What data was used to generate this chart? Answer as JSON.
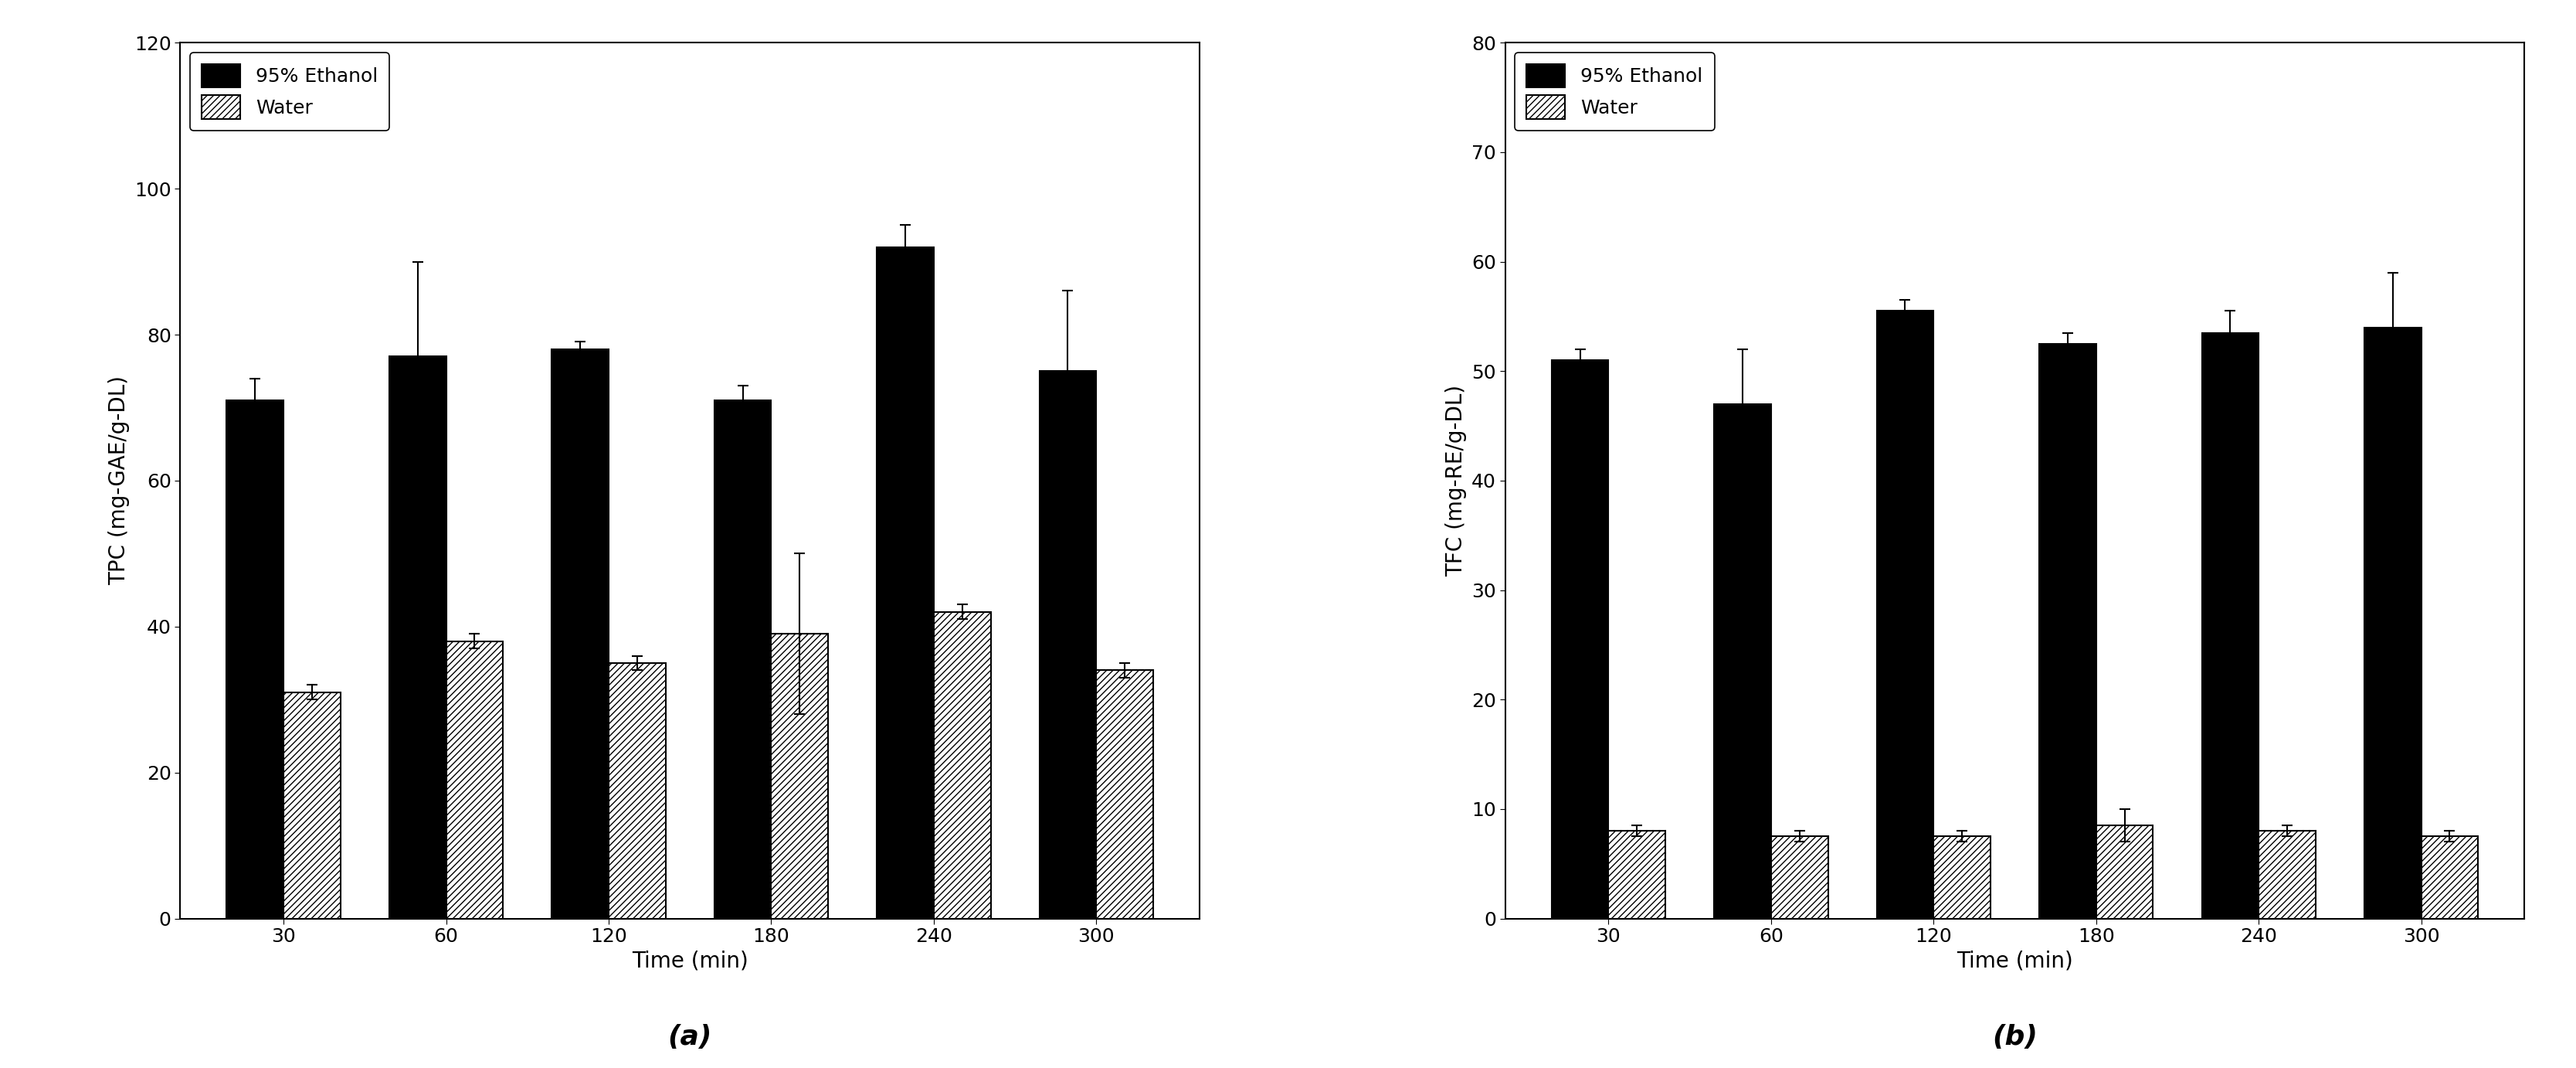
{
  "time_labels": [
    30,
    60,
    120,
    180,
    240,
    300
  ],
  "chart_a": {
    "title": "(a)",
    "ylabel": "TPC (mg-GAE/g-DL)",
    "xlabel": "Time (min)",
    "ylim": [
      0,
      120
    ],
    "yticks": [
      0,
      20,
      40,
      60,
      80,
      100,
      120
    ],
    "ethanol_values": [
      71,
      77,
      78,
      71,
      92,
      75
    ],
    "ethanol_errors": [
      3,
      13,
      1,
      2,
      3,
      11
    ],
    "water_values": [
      31,
      38,
      35,
      39,
      42,
      34
    ],
    "water_errors": [
      1,
      1,
      1,
      11,
      1,
      1
    ]
  },
  "chart_b": {
    "title": "(b)",
    "ylabel": "TFC (mg-RE/g-DL)",
    "xlabel": "Time (min)",
    "ylim": [
      0,
      80
    ],
    "yticks": [
      0,
      10,
      20,
      30,
      40,
      50,
      60,
      70,
      80
    ],
    "ethanol_values": [
      51,
      47,
      55.5,
      52.5,
      53.5,
      54
    ],
    "ethanol_errors": [
      1,
      5,
      1,
      1,
      2,
      5
    ],
    "water_values": [
      8,
      7.5,
      7.5,
      8.5,
      8,
      7.5
    ],
    "water_errors": [
      0.5,
      0.5,
      0.5,
      1.5,
      0.5,
      0.5
    ]
  },
  "legend_labels": [
    "95% Ethanol",
    "Water"
  ],
  "ethanol_color": "#000000",
  "water_color": "#ffffff",
  "water_hatch": "////",
  "bar_width": 0.35,
  "bar_edge_color": "#000000",
  "subplot_label_fontsize": 26,
  "axis_label_fontsize": 20,
  "tick_fontsize": 18,
  "legend_fontsize": 18
}
